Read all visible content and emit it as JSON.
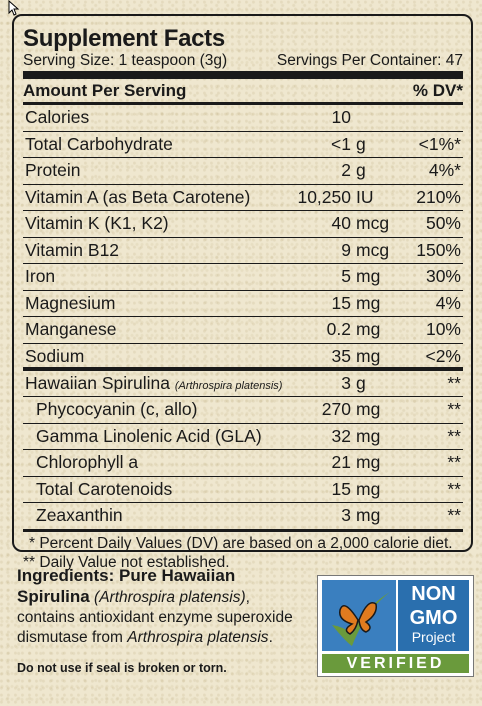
{
  "facts": {
    "title": "Supplement Facts",
    "serving_size": "Serving Size: 1 teaspoon (3g)",
    "servings_per_container": "Servings Per Container: 47",
    "header_left": "Amount Per Serving",
    "header_right": "% DV*",
    "rows": [
      {
        "name": "Calories",
        "amount": "10",
        "unit": "",
        "dv": ""
      },
      {
        "name": "Total Carbohydrate",
        "amount": "<1",
        "unit": "g",
        "dv": "<1%*"
      },
      {
        "name": "Protein",
        "amount": "2",
        "unit": "g",
        "dv": "4%*"
      },
      {
        "name": "Vitamin A (as Beta Carotene)",
        "amount": "10,250",
        "unit": "IU",
        "dv": "210%"
      },
      {
        "name": "Vitamin K (K1, K2)",
        "amount": "40",
        "unit": "mcg",
        "dv": "50%"
      },
      {
        "name": "Vitamin B12",
        "amount": "9",
        "unit": "mcg",
        "dv": "150%"
      },
      {
        "name": "Iron",
        "amount": "5",
        "unit": "mg",
        "dv": "30%"
      },
      {
        "name": "Magnesium",
        "amount": "15",
        "unit": "mg",
        "dv": "4%"
      },
      {
        "name": "Manganese",
        "amount": "0.2",
        "unit": "mg",
        "dv": "10%"
      },
      {
        "name": "Sodium",
        "amount": "35",
        "unit": "mg",
        "dv": "<2%"
      },
      {
        "name": "Hawaiian Spirulina",
        "latin": "(Arthrospira platensis)",
        "amount": "3",
        "unit": "g",
        "dv": "**"
      },
      {
        "name": "Phycocyanin (c, allo)",
        "amount": "270",
        "unit": "mg",
        "dv": "**"
      },
      {
        "name": "Gamma Linolenic Acid (GLA)",
        "amount": "32",
        "unit": "mg",
        "dv": "**"
      },
      {
        "name": "Chlorophyll a",
        "amount": "21",
        "unit": "mg",
        "dv": "**"
      },
      {
        "name": "Total Carotenoids",
        "amount": "15",
        "unit": "mg",
        "dv": "**"
      },
      {
        "name": "Zeaxanthin",
        "amount": "3",
        "unit": "mg",
        "dv": "**"
      }
    ],
    "footnote1": "* Percent Daily Values (DV) are based on a 2,000 calorie diet.",
    "footnote2": "** Daily Value not established."
  },
  "ingredients": {
    "label": "Ingredients: Pure Hawaiian Spirulina",
    "latin": "(Arthrospira platensis)",
    "text1": ", contains antioxidant enzyme superoxide dismutase from ",
    "latin2": "Arthrospira platensis",
    "text2": "."
  },
  "warning": "Do not use if seal is broken or torn.",
  "badge": {
    "line1": "NON",
    "line2": "GMO",
    "line3": "Project",
    "band": "VERIFIED",
    "icon": "butterfly-check-icon",
    "colors": {
      "blue": "#2a6fae",
      "green": "#6a9a3c",
      "orange": "#e07b1f"
    }
  }
}
